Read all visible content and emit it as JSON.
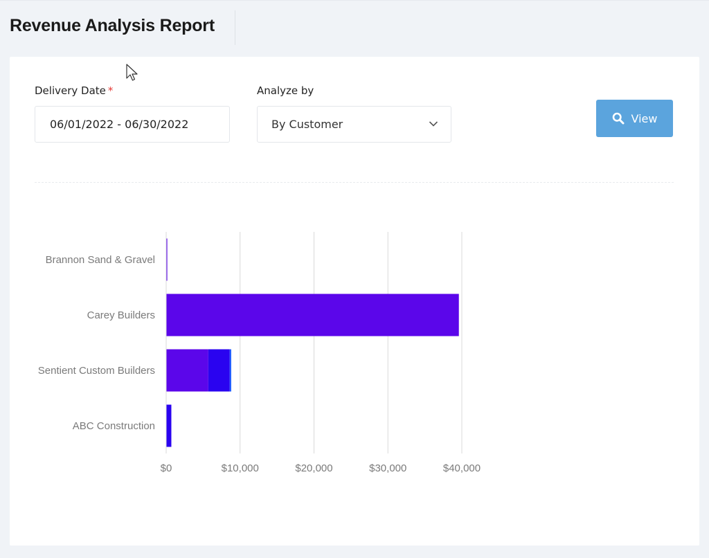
{
  "header": {
    "title": "Revenue Analysis Report"
  },
  "filters": {
    "delivery_date_label": "Delivery Date",
    "required_marker": "*",
    "delivery_date_value": "06/01/2022 - 06/30/2022",
    "analyze_by_label": "Analyze by",
    "analyze_by_value": "By Customer",
    "view_button": "View"
  },
  "icons": {
    "search": "search-icon",
    "dropdown": "chevron-down-icon",
    "cursor": "mouse-pointer-icon"
  },
  "colors": {
    "view_button": "#5ba4dd",
    "required": "#e53935"
  },
  "chart_data": {
    "type": "bar",
    "orientation": "horizontal",
    "stacked": true,
    "categories": [
      "Brannon Sand & Gravel",
      "Carey Builders",
      "Sentient Custom Builders",
      "ABC Construction"
    ],
    "series": [
      {
        "values": [
          150,
          39600,
          5700,
          0
        ],
        "color": "#5b06ea"
      },
      {
        "values": [
          0,
          0,
          2900,
          700
        ],
        "color": "#2a03f0"
      },
      {
        "values": [
          0,
          0,
          200,
          0
        ],
        "color": "#1e5bff"
      }
    ],
    "xlim": [
      0,
      40000
    ],
    "x_ticks": [
      "$0",
      "$10,000",
      "$20,000",
      "$30,000",
      "$40,000"
    ],
    "grid": true,
    "legend": "none"
  }
}
